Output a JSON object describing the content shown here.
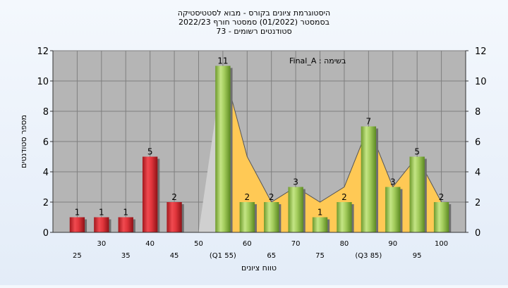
{
  "chart_data": {
    "type": "bar",
    "title_lines": [
      "היסטוגרמת ציונים בקורס - מבוא לסטטיסטיקה",
      "בסמסטר  (01/2022)  סמסטר חורף 2022/23",
      "סטודנטים רשומים - 73"
    ],
    "xlabel": "טווח ציונים",
    "ylabel": "מספר סטודנטים",
    "annotation": "בשימה : Final_A",
    "ylim": [
      0,
      12
    ],
    "yticks": [
      0,
      2,
      4,
      6,
      8,
      10,
      12
    ],
    "x_tick_labels": [
      {
        "x": 25,
        "label": "25",
        "row": 2
      },
      {
        "x": 30,
        "label": "30",
        "row": 1
      },
      {
        "x": 35,
        "label": "35",
        "row": 2
      },
      {
        "x": 40,
        "label": "40",
        "row": 1
      },
      {
        "x": 45,
        "label": "45",
        "row": 2
      },
      {
        "x": 50,
        "label": "50",
        "row": 1
      },
      {
        "x": 55,
        "label": "(Q1 55)",
        "row": 2
      },
      {
        "x": 60,
        "label": "60",
        "row": 1
      },
      {
        "x": 65,
        "label": "65",
        "row": 2
      },
      {
        "x": 70,
        "label": "70",
        "row": 1
      },
      {
        "x": 75,
        "label": "75",
        "row": 2
      },
      {
        "x": 80,
        "label": "80",
        "row": 1
      },
      {
        "x": 85,
        "label": "(Q3 85)",
        "row": 2
      },
      {
        "x": 90,
        "label": "90",
        "row": 1
      },
      {
        "x": 95,
        "label": "95",
        "row": 2
      },
      {
        "x": 100,
        "label": "100",
        "row": 1
      }
    ],
    "bars": [
      {
        "x": 25,
        "value": 1,
        "label": "1",
        "group": "fail"
      },
      {
        "x": 30,
        "value": 1,
        "label": "1",
        "group": "fail"
      },
      {
        "x": 35,
        "value": 1,
        "label": "1",
        "group": "fail"
      },
      {
        "x": 40,
        "value": 5,
        "label": "5",
        "group": "fail"
      },
      {
        "x": 45,
        "value": 2,
        "label": "2",
        "group": "fail"
      },
      {
        "x": 55,
        "value": 11,
        "label": "11",
        "group": "pass"
      },
      {
        "x": 60,
        "value": 2,
        "label": "2",
        "group": "pass"
      },
      {
        "x": 65,
        "value": 2,
        "label": "2",
        "group": "pass"
      },
      {
        "x": 70,
        "value": 3,
        "label": "3",
        "group": "pass"
      },
      {
        "x": 75,
        "value": 1,
        "label": "1",
        "group": "pass"
      },
      {
        "x": 80,
        "value": 2,
        "label": "2",
        "group": "pass"
      },
      {
        "x": 85,
        "value": 7,
        "label": "7",
        "group": "pass"
      },
      {
        "x": 90,
        "value": 3,
        "label": "3",
        "group": "pass"
      },
      {
        "x": 95,
        "value": 5,
        "label": "5",
        "group": "pass"
      },
      {
        "x": 100,
        "value": 2,
        "label": "2",
        "group": "pass"
      }
    ],
    "background_series": {
      "gray_area": [
        [
          47,
          0
        ],
        [
          50,
          0
        ],
        [
          55,
          11
        ],
        [
          55,
          0
        ]
      ],
      "orange_area": [
        [
          55,
          11
        ],
        [
          60,
          5
        ],
        [
          65,
          2
        ],
        [
          70,
          3
        ],
        [
          75,
          2
        ],
        [
          80,
          3
        ],
        [
          85,
          7
        ],
        [
          90,
          3
        ],
        [
          95,
          5
        ],
        [
          100,
          2
        ],
        [
          100,
          0
        ],
        [
          55,
          0
        ]
      ]
    },
    "grid": true,
    "colors": {
      "plot_bg": "#b5b5b5",
      "gridline": "#7f7f7f",
      "fail_bar": "#e0353b",
      "pass_bar": "#9bc654",
      "orange_area": "#ffc955",
      "gray_area": "#d0d0d0",
      "page_bg": "#e8eff9"
    }
  }
}
